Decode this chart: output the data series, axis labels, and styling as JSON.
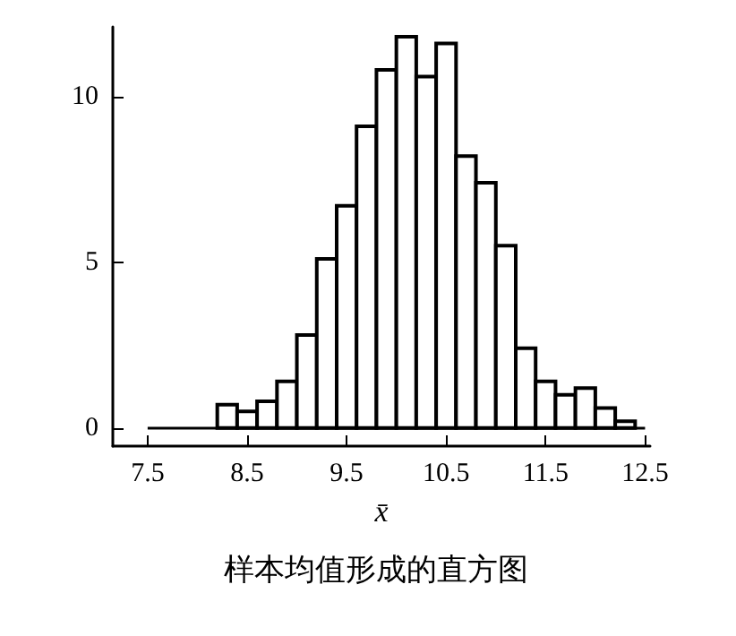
{
  "chart_data": {
    "type": "histogram",
    "title": "样本均值形成的直方图",
    "xlabel": "x̄",
    "bins": [
      8.2,
      8.4,
      8.6,
      8.8,
      9.0,
      9.2,
      9.4,
      9.6,
      9.8,
      10.0,
      10.2,
      10.4,
      10.6,
      10.8,
      11.0,
      11.2,
      11.4,
      11.6,
      11.8,
      12.0,
      12.2,
      12.4
    ],
    "values": [
      0.7,
      0.5,
      0.8,
      1.4,
      2.8,
      5.1,
      6.7,
      9.1,
      10.8,
      11.8,
      10.6,
      11.6,
      8.2,
      7.4,
      5.5,
      2.4,
      1.4,
      1.0,
      1.2,
      0.6,
      0.2
    ],
    "color": "#ffffff",
    "xlim": [
      7.15,
      12.55
    ],
    "xticks": [
      7.5,
      8.5,
      9.5,
      10.5,
      11.5,
      12.5
    ],
    "ylim": [
      -0.55,
      12.1
    ],
    "yticks": [
      0,
      5,
      10
    ],
    "ref_lines": [
      {
        "axis": "y",
        "value": 0
      }
    ],
    "grid": false
  }
}
